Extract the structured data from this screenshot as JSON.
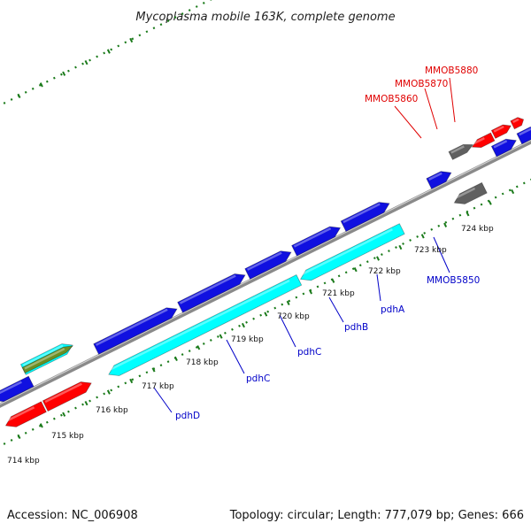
{
  "title": "Mycoplasma mobile 163K, complete genome",
  "footer": {
    "accession": "Accession: NC_006908",
    "summary": "Topology: circular; Length: 777,079 bp; Genes: 666"
  },
  "colors": {
    "background": "#ffffff",
    "backbone": "#7a7a7a",
    "tick": "#1a7a1a",
    "gene_blue": "#1010e0",
    "gene_cyan": "#00ffff",
    "gene_red": "#ff0000",
    "gene_dark_gray": "#606060",
    "gene_light_gray": "#c8c8c8",
    "gene_olive": "#6b8e23",
    "label_blue": "#0000c8",
    "label_red": "#e00000"
  },
  "ticks": [
    {
      "label": "714 kbp"
    },
    {
      "label": "715 kbp"
    },
    {
      "label": "716 kbp"
    },
    {
      "label": "717 kbp"
    },
    {
      "label": "718 kbp"
    },
    {
      "label": "719 kbp"
    },
    {
      "label": "720 kbp"
    },
    {
      "label": "721 kbp"
    },
    {
      "label": "722 kbp"
    },
    {
      "label": "723 kbp"
    },
    {
      "label": "724 kbp"
    }
  ],
  "gene_labels": [
    {
      "name": "pdhD",
      "color": "blue"
    },
    {
      "name": "pdhC",
      "color": "blue"
    },
    {
      "name": "pdhC",
      "color": "blue"
    },
    {
      "name": "pdhB",
      "color": "blue"
    },
    {
      "name": "pdhA",
      "color": "blue"
    },
    {
      "name": "MMOB5850",
      "color": "blue"
    },
    {
      "name": "MMOB5860",
      "color": "red"
    },
    {
      "name": "MMOB5870",
      "color": "red"
    },
    {
      "name": "MMOB5880",
      "color": "red"
    }
  ]
}
